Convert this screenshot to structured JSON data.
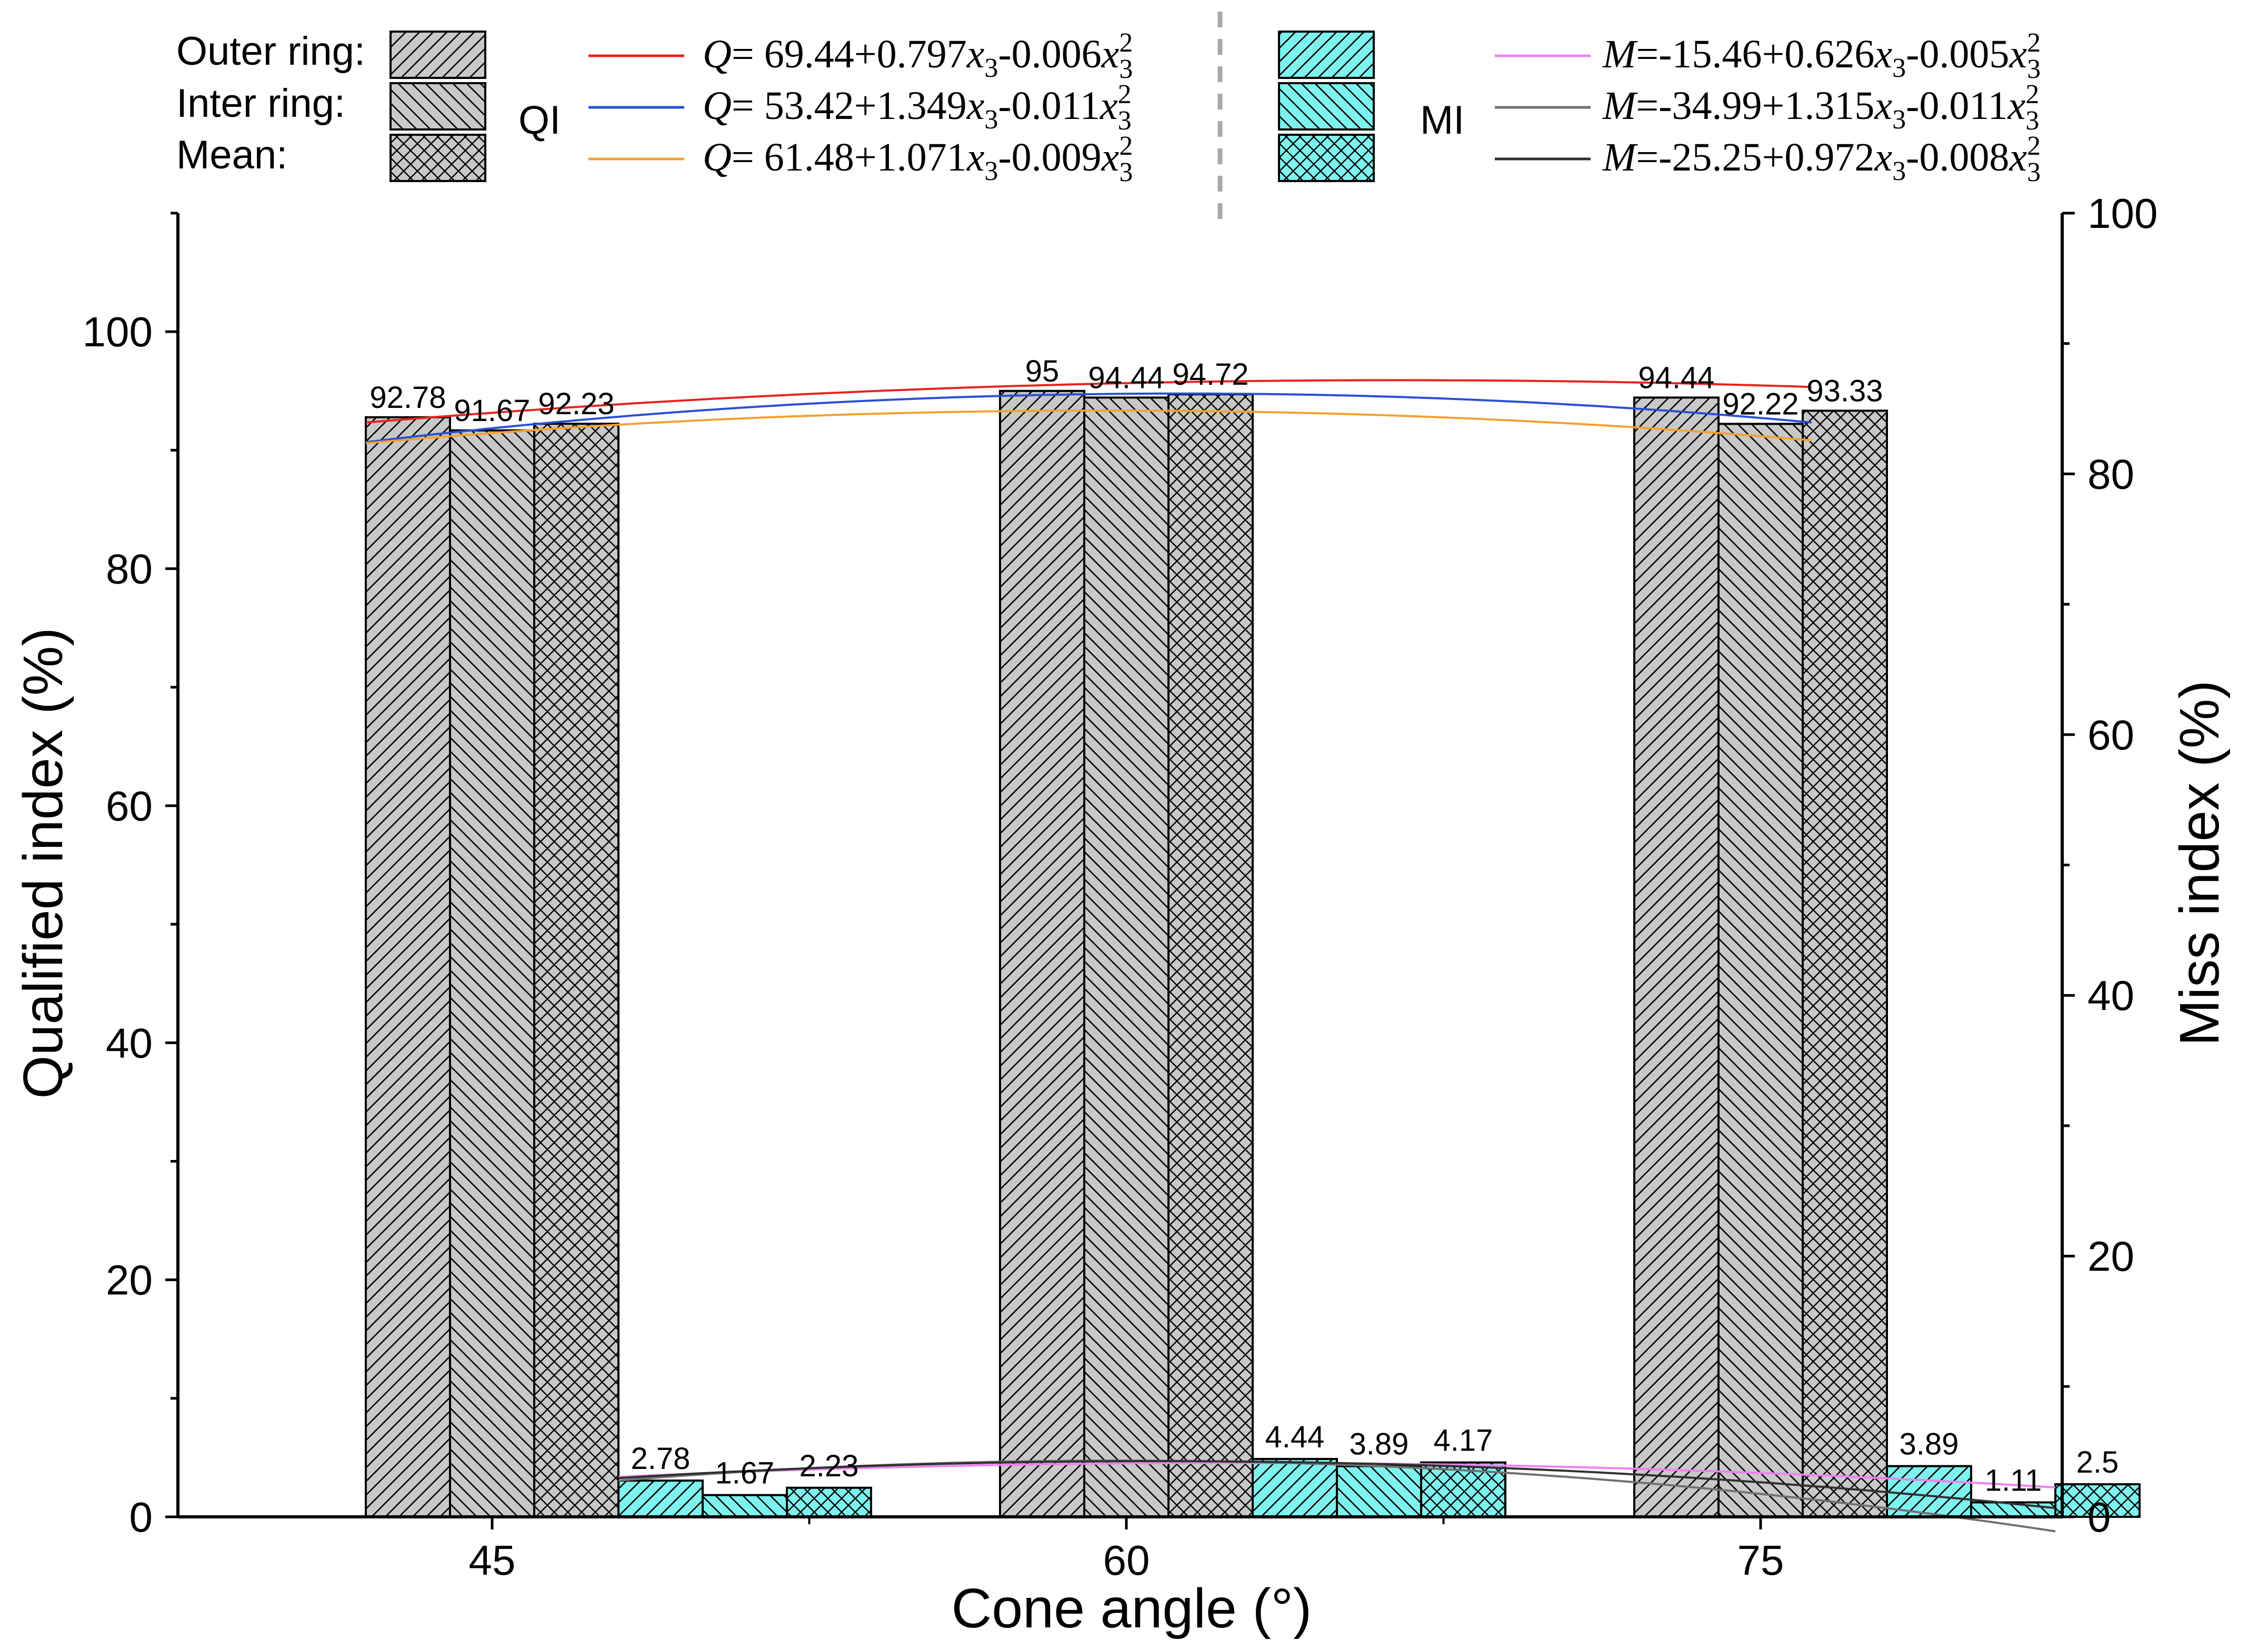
{
  "chart_data": {
    "type": "bar",
    "xlabel": "Cone angle (°)",
    "ylabel_left": "Qualified index (%)",
    "ylabel_right": "Miss index (%)",
    "categories": [
      "45",
      "60",
      "75"
    ],
    "x_values": [
      45,
      60,
      75
    ],
    "ylim_left": [
      0,
      110
    ],
    "yticks_left": [
      "0",
      "20",
      "40",
      "60",
      "80",
      "100"
    ],
    "ylim_right": [
      0,
      100
    ],
    "yticks_right": [
      "0",
      "20",
      "40",
      "60",
      "80",
      "100"
    ],
    "qi_series": [
      {
        "name": "Outer ring",
        "pattern": "diag-right",
        "values": [
          92.78,
          95,
          94.44
        ],
        "labels": [
          "92.78",
          "95",
          "94.44"
        ]
      },
      {
        "name": "Inter ring",
        "pattern": "diag-left",
        "values": [
          91.67,
          94.44,
          92.22
        ],
        "labels": [
          "91.67",
          "94.44",
          "92.22"
        ]
      },
      {
        "name": "Mean",
        "pattern": "cross",
        "values": [
          92.23,
          94.72,
          93.33
        ],
        "labels": [
          "92.23",
          "94.72",
          "93.33"
        ]
      }
    ],
    "mi_series": [
      {
        "name": "Outer ring",
        "pattern": "diag-right",
        "values": [
          2.78,
          4.44,
          3.89
        ],
        "labels": [
          "2.78",
          "4.44",
          "3.89"
        ]
      },
      {
        "name": "Inter ring",
        "pattern": "diag-left",
        "values": [
          1.67,
          3.89,
          1.11
        ],
        "labels": [
          "1.67",
          "3.89",
          "1.11"
        ]
      },
      {
        "name": "Mean",
        "pattern": "cross",
        "values": [
          2.23,
          4.17,
          2.5
        ],
        "labels": [
          "2.23",
          "4.17",
          "2.5"
        ]
      }
    ],
    "qi_fits": [
      {
        "a": 69.44,
        "b": 0.797,
        "c": 0.006,
        "color": "#e8231f"
      },
      {
        "a": 53.42,
        "b": 1.349,
        "c": 0.011,
        "color": "#2a4fd6"
      },
      {
        "a": 61.48,
        "b": 1.071,
        "c": 0.009,
        "color": "#f5a030"
      }
    ],
    "mi_fits": [
      {
        "a": -15.46,
        "b": 0.626,
        "c": 0.005,
        "color": "#ee82ee"
      },
      {
        "a": -34.99,
        "b": 1.315,
        "c": 0.011,
        "color": "#707070"
      },
      {
        "a": -25.25,
        "b": 0.972,
        "c": 0.008,
        "color": "#303030"
      }
    ],
    "legend": {
      "row_labels": [
        "Outer ring:",
        "Inter ring:",
        "Mean:"
      ],
      "qi_group_label": "QI",
      "mi_group_label": "MI",
      "qi_equations": [
        {
          "var": "Q",
          "rest": "= 69.44+0.797",
          "mid": "-0.006"
        },
        {
          "var": "Q",
          "rest": "= 53.42+1.349",
          "mid": "-0.011"
        },
        {
          "var": "Q",
          "rest": "= 61.48+1.071",
          "mid": "-0.009"
        }
      ],
      "mi_equations": [
        {
          "var": "M",
          "rest": "=-15.46+0.626",
          "mid": "-0.005"
        },
        {
          "var": "M",
          "rest": "=-34.99+1.315",
          "mid": "-0.011"
        },
        {
          "var": "M",
          "rest": "=-25.25+0.972",
          "mid": "-0.008"
        }
      ],
      "x_symbol": "x",
      "x_subscript": "3",
      "x_superscript": "2"
    },
    "colors": {
      "qi_fill": "#c8c8c8",
      "mi_fill": "#7ef2ee",
      "hatch": "#000000"
    }
  }
}
